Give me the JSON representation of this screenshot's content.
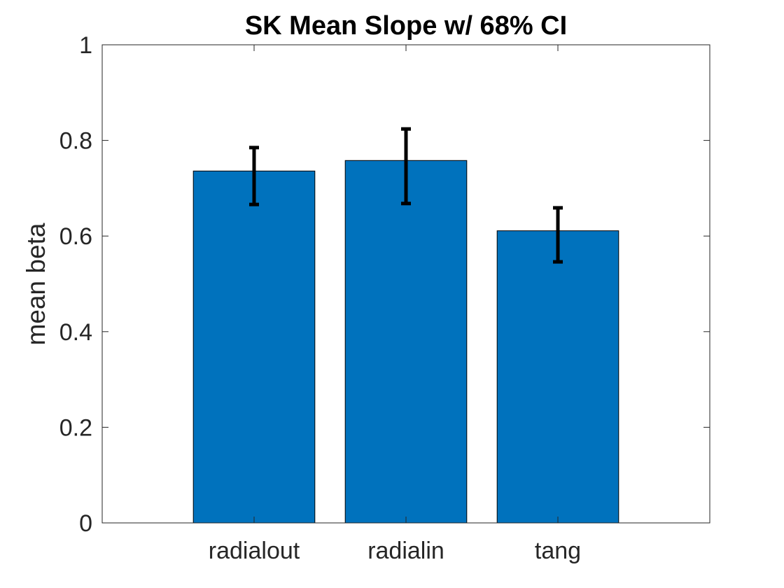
{
  "chart_data": {
    "type": "bar",
    "title": "SK Mean Slope w/ 68% CI",
    "xlabel": "",
    "ylabel": "mean beta",
    "categories": [
      "radialout",
      "radialin",
      "tang"
    ],
    "values": [
      0.736,
      0.758,
      0.611
    ],
    "error_low": [
      0.666,
      0.668,
      0.546
    ],
    "error_high": [
      0.785,
      0.824,
      0.659
    ],
    "ylim": [
      0,
      1
    ],
    "yticks": [
      "0",
      "0.2",
      "0.4",
      "0.6",
      "0.8",
      "1"
    ],
    "grid": false,
    "legend": "none",
    "colors": {
      "bar": "#0072BD",
      "bar_edge": "#000000",
      "error_bar": "#000000",
      "axis": "#262626"
    }
  }
}
